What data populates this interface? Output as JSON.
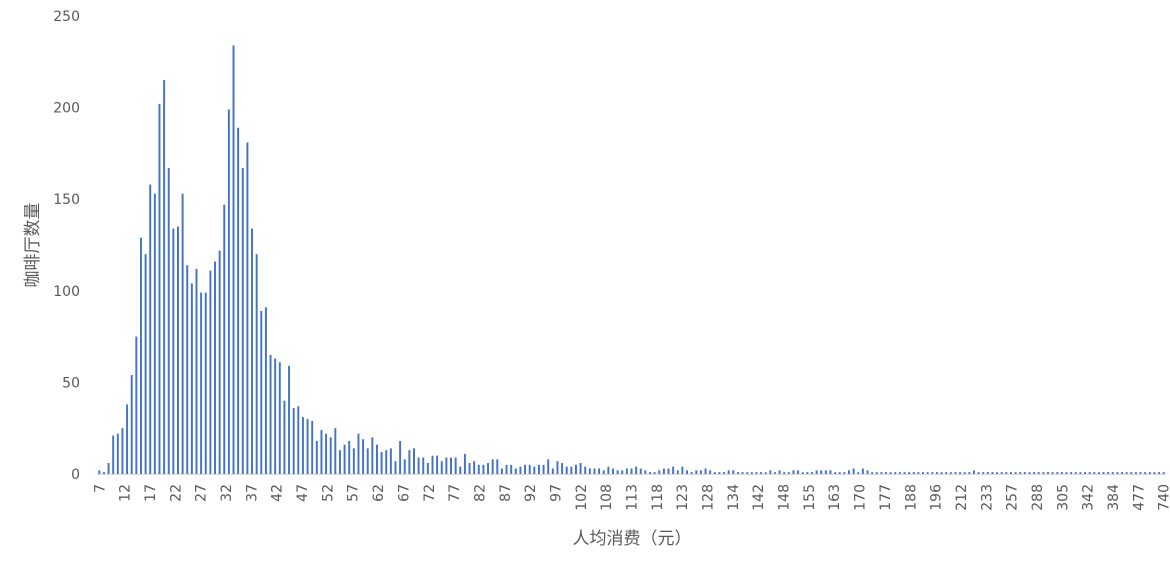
{
  "chart_data": {
    "type": "bar",
    "title": "",
    "xlabel": "人均消费（元）",
    "ylabel": "咖啡厅数量",
    "ylim": [
      0,
      250
    ],
    "y_ticks": [
      "0",
      "50",
      "100",
      "150",
      "200",
      "250"
    ],
    "x_tick_labels": [
      "7",
      "12",
      "17",
      "22",
      "27",
      "32",
      "37",
      "42",
      "47",
      "52",
      "57",
      "62",
      "67",
      "72",
      "77",
      "82",
      "87",
      "92",
      "97",
      "102",
      "108",
      "113",
      "118",
      "123",
      "128",
      "134",
      "142",
      "148",
      "155",
      "163",
      "170",
      "177",
      "188",
      "196",
      "212",
      "233",
      "257",
      "288",
      "305",
      "342",
      "384",
      "477",
      "740"
    ],
    "bar_color": "#4472c4",
    "values": [
      2,
      1,
      6,
      21,
      22,
      25,
      38,
      54,
      75,
      129,
      120,
      158,
      153,
      202,
      215,
      167,
      134,
      135,
      153,
      114,
      104,
      112,
      99,
      99,
      111,
      116,
      122,
      147,
      199,
      234,
      189,
      167,
      181,
      134,
      120,
      89,
      91,
      65,
      63,
      61,
      40,
      59,
      36,
      37,
      31,
      30,
      29,
      18,
      24,
      22,
      20,
      25,
      13,
      16,
      18,
      14,
      22,
      19,
      14,
      20,
      16,
      12,
      13,
      14,
      7,
      18,
      8,
      13,
      14,
      9,
      9,
      6,
      10,
      10,
      7,
      9,
      9,
      9,
      4,
      11,
      6,
      7,
      5,
      5,
      6,
      8,
      8,
      3,
      5,
      5,
      3,
      4,
      5,
      5,
      4,
      5,
      5,
      8,
      3,
      7,
      6,
      4,
      4,
      5,
      6,
      4,
      3,
      3,
      3,
      2,
      4,
      3,
      2,
      2,
      3,
      3,
      4,
      3,
      2,
      1,
      1,
      2,
      3,
      3,
      4,
      2,
      4,
      2,
      1,
      2,
      2,
      3,
      2,
      1,
      1,
      1,
      2,
      2,
      1,
      1,
      1,
      1,
      1,
      1,
      1,
      2,
      1,
      2,
      1,
      1,
      2,
      2,
      1,
      1,
      1,
      2,
      2,
      2,
      2,
      1,
      1,
      1,
      2,
      3,
      1,
      3,
      2,
      1,
      1,
      1,
      1,
      1,
      1,
      1,
      1,
      1,
      1,
      1,
      1,
      1,
      1,
      1,
      1,
      1,
      1,
      1,
      1,
      1,
      1,
      2,
      1,
      1,
      1,
      1,
      1,
      1,
      1,
      1,
      1,
      1,
      1,
      1,
      1,
      1,
      1,
      1,
      1,
      1,
      1,
      1,
      1,
      1,
      1,
      1,
      1,
      1,
      1,
      1,
      1,
      1,
      1,
      1,
      1,
      1,
      1,
      1,
      1,
      1,
      1,
      1,
      1
    ]
  }
}
